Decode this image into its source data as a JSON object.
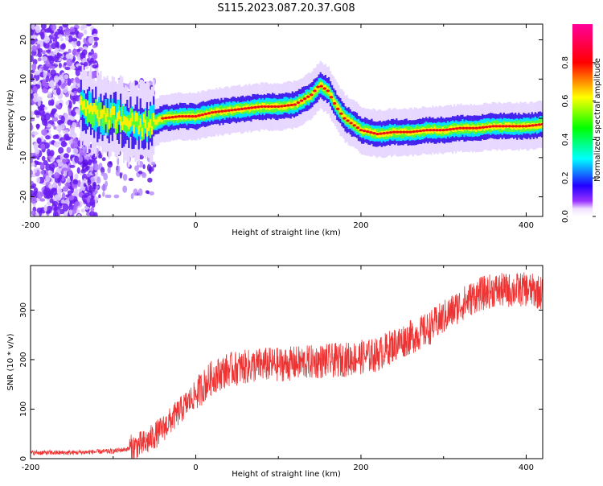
{
  "title": "S115.2023.087.20.37.G08",
  "chart_data": [
    {
      "type": "heatmap",
      "xlabel": "Height of straight line (km)",
      "ylabel": "Frequency (Hz)",
      "xlim": [
        -200,
        420
      ],
      "ylim": [
        -25,
        24
      ],
      "xticks": [
        -200,
        0,
        200,
        400
      ],
      "yticks": [
        -20,
        -10,
        0,
        10,
        20
      ],
      "colorbar": {
        "label": "Normalized spectral amplitude",
        "range": [
          0,
          1
        ],
        "ticks": [
          0.0,
          0.2,
          0.4,
          0.6,
          0.8
        ]
      },
      "ridge": {
        "x": [
          -140,
          -120,
          -100,
          -80,
          -60,
          -40,
          -20,
          0,
          20,
          40,
          60,
          80,
          100,
          120,
          140,
          150,
          160,
          170,
          180,
          200,
          220,
          240,
          260,
          280,
          300,
          320,
          340,
          360,
          380,
          400,
          420
        ],
        "y": [
          3,
          1,
          0,
          -1,
          -2,
          0,
          0.5,
          0.5,
          1.5,
          2,
          2.5,
          3,
          3,
          3.5,
          6,
          8.5,
          7,
          3,
          0,
          -3,
          -4,
          -3.5,
          -3.5,
          -3,
          -3,
          -2.5,
          -2.5,
          -2,
          -2,
          -2,
          -1.5
        ]
      }
    },
    {
      "type": "line",
      "xlabel": "Height of straight line (km)",
      "ylabel": "SNR (10 * v/v)",
      "xlim": [
        -200,
        420
      ],
      "ylim": [
        0,
        390
      ],
      "xticks": [
        -200,
        0,
        200,
        400
      ],
      "yticks": [
        0,
        100,
        200,
        300
      ],
      "color": "#ee3333",
      "trend": {
        "x": [
          -200,
          -150,
          -100,
          -80,
          -60,
          -40,
          -20,
          0,
          20,
          40,
          60,
          80,
          100,
          140,
          180,
          200,
          220,
          240,
          260,
          280,
          300,
          320,
          340,
          360,
          380,
          400,
          420
        ],
        "y": [
          12,
          12,
          15,
          20,
          32,
          60,
          95,
          130,
          165,
          180,
          185,
          190,
          190,
          195,
          200,
          205,
          210,
          230,
          245,
          260,
          285,
          310,
          330,
          340,
          340,
          342,
          335
        ]
      }
    }
  ]
}
